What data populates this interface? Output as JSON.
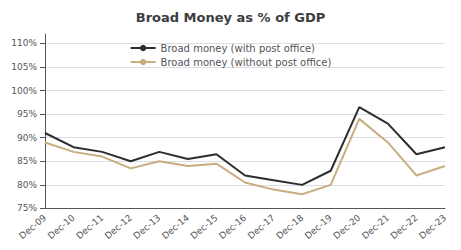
{
  "chart_data": {
    "type": "line",
    "title": "Broad Money as % of GDP",
    "categories": [
      "Dec-09",
      "Dec-10",
      "Dec-11",
      "Dec-12",
      "Dec-13",
      "Dec-14",
      "Dec-15",
      "Dec-16",
      "Dec-17",
      "Dec-18",
      "Dec-19",
      "Dec-20",
      "Dec-21",
      "Dec-22",
      "Dec-23"
    ],
    "series": [
      {
        "name": "Broad money (with post office)",
        "color": "#2d2d2d",
        "values": [
          91,
          88,
          87,
          85,
          87,
          85.5,
          86.5,
          82,
          81,
          80,
          83,
          96.5,
          93,
          86.5,
          88
        ]
      },
      {
        "name": "Broad money (without post office)",
        "color": "#c8ad7f",
        "values": [
          89,
          87,
          86,
          83.5,
          85,
          84,
          84.5,
          80.5,
          79,
          78,
          80,
          94,
          89,
          82,
          84
        ]
      }
    ],
    "ylim": [
      75,
      112
    ],
    "yticks": [
      {
        "value": 75,
        "label": "75%"
      },
      {
        "value": 80,
        "label": "80%"
      },
      {
        "value": 85,
        "label": "85%"
      },
      {
        "value": 90,
        "label": "90%"
      },
      {
        "value": 95,
        "label": "95%"
      },
      {
        "value": 100,
        "label": "100%"
      },
      {
        "value": 105,
        "label": "105%"
      },
      {
        "value": 110,
        "label": "110%"
      }
    ],
    "grid": true,
    "legend": "upper center"
  }
}
